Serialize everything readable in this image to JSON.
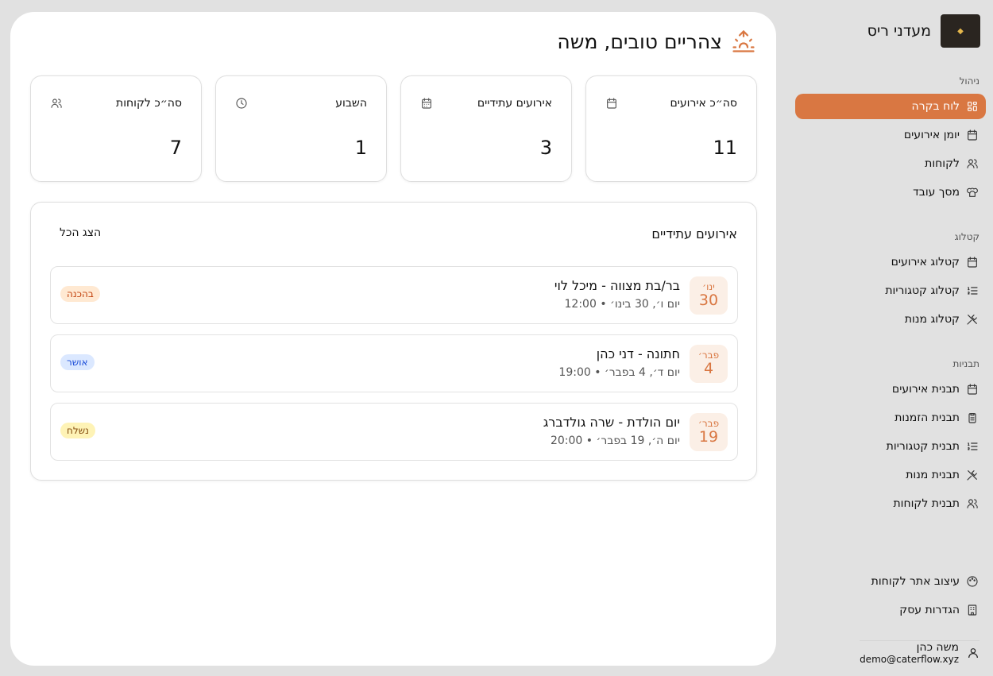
{
  "greeting": "צהריים טובים, משה",
  "accent": "#d97742",
  "stats": [
    {
      "label": "סה״כ אירועים",
      "value": "11",
      "icon": "calendar-icon"
    },
    {
      "label": "אירועים עתידיים",
      "value": "3",
      "icon": "calendar-grid-icon"
    },
    {
      "label": "השבוע",
      "value": "1",
      "icon": "clock-icon"
    },
    {
      "label": "סה״כ לקוחות",
      "value": "7",
      "icon": "users-icon"
    }
  ],
  "upcoming": {
    "title": "אירועים עתידיים",
    "show_all": "הצג הכל",
    "events": [
      {
        "month": "ינו׳",
        "day": "30",
        "name": "בר/בת מצווה - מיכל לוי",
        "sub": "יום ו׳, 30 בינו׳ • 12:00",
        "status": "בהכנה",
        "status_bg": "#ffe9d2",
        "status_fg": "#c2410c"
      },
      {
        "month": "פבר׳",
        "day": "4",
        "name": "חתונה - דני כהן",
        "sub": "יום ד׳, 4 בפבר׳ • 19:00",
        "status": "אושר",
        "status_bg": "#dbe8ff",
        "status_fg": "#1d4ed8"
      },
      {
        "month": "פבר׳",
        "day": "19",
        "name": "יום הולדת - שרה גולדברג",
        "sub": "יום ה׳, 19 בפבר׳ • 20:00",
        "status": "נשלח",
        "status_bg": "#fef3b6",
        "status_fg": "#854d0e"
      }
    ]
  },
  "sidebar": {
    "brand": "מעדני ריס",
    "logo_text": "מעדני ריס",
    "sections": [
      {
        "label": "ניהול",
        "items": [
          {
            "label": "לוח בקרה",
            "icon": "dashboard-icon",
            "active": true
          },
          {
            "label": "יומן אירועים",
            "icon": "calendar-icon"
          },
          {
            "label": "לקוחות",
            "icon": "users-icon"
          },
          {
            "label": "מסך עובד",
            "icon": "chef-hat-icon"
          }
        ]
      },
      {
        "label": "קטלוג",
        "items": [
          {
            "label": "קטלוג אירועים",
            "icon": "calendar-icon"
          },
          {
            "label": "קטלוג קטגוריות",
            "icon": "list-ordered-icon"
          },
          {
            "label": "קטלוג מנות",
            "icon": "utensils-icon"
          }
        ]
      },
      {
        "label": "תבניות",
        "items": [
          {
            "label": "תבנית אירועים",
            "icon": "calendar-icon"
          },
          {
            "label": "תבנית הזמנות",
            "icon": "clipboard-icon"
          },
          {
            "label": "תבנית קטגוריות",
            "icon": "list-ordered-icon"
          },
          {
            "label": "תבנית מנות",
            "icon": "utensils-icon"
          },
          {
            "label": "תבנית לקוחות",
            "icon": "users-icon"
          }
        ]
      }
    ],
    "bottom": [
      {
        "label": "עיצוב אתר לקוחות",
        "icon": "palette-icon"
      },
      {
        "label": "הגדרות עסק",
        "icon": "building-icon"
      }
    ],
    "user": {
      "name": "משה כהן",
      "email": "demo@caterflow.xyz"
    }
  }
}
